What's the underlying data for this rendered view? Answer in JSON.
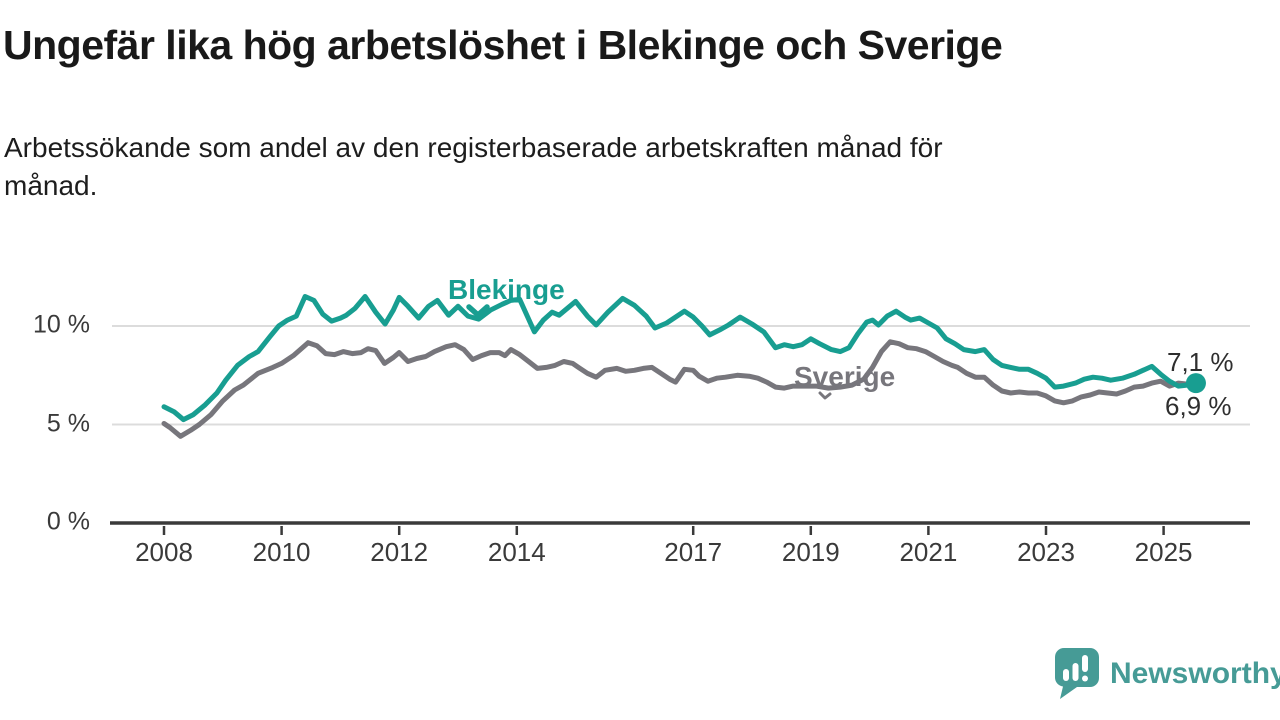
{
  "title": "Ungefär lika hög arbetslöshet i Blekinge och Sverige",
  "subtitle_lines": {
    "0": "Arbetssökande som andel av den registerbaserade arbetskraften månad för",
    "1": "månad."
  },
  "branding": {
    "logo_text": "Newsworthy",
    "logo_color": "#469B96",
    "logo_icon": "speech-bubble-bar-chart-icon"
  },
  "chart_data": {
    "type": "line",
    "title": "Ungefär lika hög arbetslöshet i Blekinge och Sverige",
    "subtitle": "Arbetssökande som andel av den registerbaserade arbetskraften månad för månad.",
    "xlabel": "",
    "ylabel": "",
    "unit": "%",
    "grid": "horizontal",
    "gridline_values": [
      5,
      10
    ],
    "gridline_color": "#dcdcdc",
    "axis_color": "#3a3a3a",
    "xlim": [
      2007.08,
      2026.45
    ],
    "ylim": [
      0,
      12.3
    ],
    "x_ticks": [
      {
        "value": 2008,
        "label": "2008"
      },
      {
        "value": 2010,
        "label": "2010"
      },
      {
        "value": 2012,
        "label": "2012"
      },
      {
        "value": 2014,
        "label": "2014"
      },
      {
        "value": 2017,
        "label": "2017"
      },
      {
        "value": 2019,
        "label": "2019"
      },
      {
        "value": 2021,
        "label": "2021"
      },
      {
        "value": 2023,
        "label": "2023"
      },
      {
        "value": 2025,
        "label": "2025"
      }
    ],
    "y_ticks": [
      {
        "value": 0,
        "label": "0 %"
      },
      {
        "value": 5,
        "label": "5 %"
      },
      {
        "value": 10,
        "label": "10 %"
      }
    ],
    "legend": "inline series labels with pointer arrows",
    "series": [
      {
        "name": "Blekinge",
        "color": "#189E91",
        "end_label": "7,1 %",
        "end_value": 7.1,
        "end_dot": true,
        "points": [
          [
            2008.0,
            5.9
          ],
          [
            2008.17,
            5.65
          ],
          [
            2008.33,
            5.25
          ],
          [
            2008.5,
            5.5
          ],
          [
            2008.7,
            6.0
          ],
          [
            2008.9,
            6.6
          ],
          [
            2009.05,
            7.25
          ],
          [
            2009.25,
            8.0
          ],
          [
            2009.45,
            8.45
          ],
          [
            2009.6,
            8.7
          ],
          [
            2009.8,
            9.45
          ],
          [
            2009.95,
            10.0
          ],
          [
            2010.1,
            10.3
          ],
          [
            2010.25,
            10.5
          ],
          [
            2010.4,
            11.5
          ],
          [
            2010.55,
            11.3
          ],
          [
            2010.7,
            10.6
          ],
          [
            2010.85,
            10.25
          ],
          [
            2011.0,
            10.4
          ],
          [
            2011.1,
            10.55
          ],
          [
            2011.25,
            10.9
          ],
          [
            2011.42,
            11.5
          ],
          [
            2011.6,
            10.7
          ],
          [
            2011.76,
            10.1
          ],
          [
            2011.9,
            10.8
          ],
          [
            2012.0,
            11.45
          ],
          [
            2012.15,
            11.0
          ],
          [
            2012.33,
            10.4
          ],
          [
            2012.5,
            11.0
          ],
          [
            2012.65,
            11.3
          ],
          [
            2012.84,
            10.55
          ],
          [
            2013.0,
            11.0
          ],
          [
            2013.17,
            10.5
          ],
          [
            2013.35,
            10.35
          ],
          [
            2013.55,
            10.8
          ],
          [
            2013.75,
            11.1
          ],
          [
            2013.9,
            11.3
          ],
          [
            2014.05,
            11.35
          ],
          [
            2014.3,
            9.7
          ],
          [
            2014.45,
            10.3
          ],
          [
            2014.6,
            10.7
          ],
          [
            2014.72,
            10.55
          ],
          [
            2015.0,
            11.25
          ],
          [
            2015.2,
            10.5
          ],
          [
            2015.35,
            10.05
          ],
          [
            2015.55,
            10.7
          ],
          [
            2015.8,
            11.4
          ],
          [
            2016.0,
            11.05
          ],
          [
            2016.2,
            10.5
          ],
          [
            2016.35,
            9.9
          ],
          [
            2016.55,
            10.15
          ],
          [
            2016.85,
            10.75
          ],
          [
            2017.0,
            10.45
          ],
          [
            2017.15,
            10.0
          ],
          [
            2017.28,
            9.55
          ],
          [
            2017.45,
            9.8
          ],
          [
            2017.6,
            10.05
          ],
          [
            2017.8,
            10.45
          ],
          [
            2018.0,
            10.1
          ],
          [
            2018.2,
            9.7
          ],
          [
            2018.4,
            8.9
          ],
          [
            2018.55,
            9.05
          ],
          [
            2018.7,
            8.95
          ],
          [
            2018.85,
            9.05
          ],
          [
            2019.0,
            9.35
          ],
          [
            2019.15,
            9.1
          ],
          [
            2019.35,
            8.8
          ],
          [
            2019.5,
            8.7
          ],
          [
            2019.65,
            8.9
          ],
          [
            2019.8,
            9.6
          ],
          [
            2019.95,
            10.2
          ],
          [
            2020.05,
            10.3
          ],
          [
            2020.15,
            10.05
          ],
          [
            2020.3,
            10.5
          ],
          [
            2020.45,
            10.75
          ],
          [
            2020.6,
            10.45
          ],
          [
            2020.7,
            10.3
          ],
          [
            2020.85,
            10.4
          ],
          [
            2021.0,
            10.15
          ],
          [
            2021.15,
            9.9
          ],
          [
            2021.3,
            9.35
          ],
          [
            2021.45,
            9.1
          ],
          [
            2021.6,
            8.8
          ],
          [
            2021.8,
            8.7
          ],
          [
            2021.95,
            8.8
          ],
          [
            2022.1,
            8.3
          ],
          [
            2022.25,
            8.0
          ],
          [
            2022.4,
            7.9
          ],
          [
            2022.55,
            7.8
          ],
          [
            2022.7,
            7.8
          ],
          [
            2022.85,
            7.6
          ],
          [
            2023.0,
            7.35
          ],
          [
            2023.15,
            6.9
          ],
          [
            2023.3,
            6.95
          ],
          [
            2023.5,
            7.1
          ],
          [
            2023.65,
            7.3
          ],
          [
            2023.8,
            7.4
          ],
          [
            2023.95,
            7.35
          ],
          [
            2024.1,
            7.25
          ],
          [
            2024.3,
            7.35
          ],
          [
            2024.5,
            7.55
          ],
          [
            2024.65,
            7.75
          ],
          [
            2024.8,
            7.95
          ],
          [
            2024.95,
            7.55
          ],
          [
            2025.1,
            7.2
          ],
          [
            2025.25,
            6.95
          ],
          [
            2025.4,
            7.0
          ],
          [
            2025.55,
            7.1
          ]
        ]
      },
      {
        "name": "Sverige",
        "color": "#77767C",
        "end_label": "6,9 %",
        "end_value": 6.9,
        "end_dot": false,
        "points": [
          [
            2008.0,
            5.05
          ],
          [
            2008.1,
            4.85
          ],
          [
            2008.28,
            4.4
          ],
          [
            2008.45,
            4.7
          ],
          [
            2008.6,
            5.0
          ],
          [
            2008.8,
            5.5
          ],
          [
            2009.0,
            6.2
          ],
          [
            2009.2,
            6.75
          ],
          [
            2009.35,
            7.0
          ],
          [
            2009.6,
            7.6
          ],
          [
            2009.85,
            7.9
          ],
          [
            2010.0,
            8.1
          ],
          [
            2010.2,
            8.5
          ],
          [
            2010.45,
            9.15
          ],
          [
            2010.6,
            9.0
          ],
          [
            2010.75,
            8.6
          ],
          [
            2010.9,
            8.55
          ],
          [
            2011.05,
            8.7
          ],
          [
            2011.2,
            8.6
          ],
          [
            2011.35,
            8.65
          ],
          [
            2011.47,
            8.85
          ],
          [
            2011.6,
            8.75
          ],
          [
            2011.75,
            8.1
          ],
          [
            2011.9,
            8.4
          ],
          [
            2012.0,
            8.65
          ],
          [
            2012.15,
            8.2
          ],
          [
            2012.3,
            8.35
          ],
          [
            2012.45,
            8.45
          ],
          [
            2012.6,
            8.7
          ],
          [
            2012.8,
            8.95
          ],
          [
            2012.95,
            9.05
          ],
          [
            2013.1,
            8.8
          ],
          [
            2013.25,
            8.3
          ],
          [
            2013.4,
            8.5
          ],
          [
            2013.55,
            8.65
          ],
          [
            2013.7,
            8.65
          ],
          [
            2013.8,
            8.5
          ],
          [
            2013.9,
            8.8
          ],
          [
            2014.05,
            8.55
          ],
          [
            2014.2,
            8.2
          ],
          [
            2014.35,
            7.85
          ],
          [
            2014.5,
            7.9
          ],
          [
            2014.65,
            8.0
          ],
          [
            2014.8,
            8.2
          ],
          [
            2014.95,
            8.1
          ],
          [
            2015.05,
            7.9
          ],
          [
            2015.2,
            7.6
          ],
          [
            2015.35,
            7.4
          ],
          [
            2015.5,
            7.75
          ],
          [
            2015.7,
            7.85
          ],
          [
            2015.85,
            7.7
          ],
          [
            2016.0,
            7.75
          ],
          [
            2016.15,
            7.85
          ],
          [
            2016.3,
            7.9
          ],
          [
            2016.45,
            7.6
          ],
          [
            2016.6,
            7.3
          ],
          [
            2016.7,
            7.15
          ],
          [
            2016.85,
            7.8
          ],
          [
            2017.0,
            7.75
          ],
          [
            2017.1,
            7.45
          ],
          [
            2017.25,
            7.2
          ],
          [
            2017.4,
            7.35
          ],
          [
            2017.55,
            7.4
          ],
          [
            2017.75,
            7.5
          ],
          [
            2017.95,
            7.45
          ],
          [
            2018.1,
            7.35
          ],
          [
            2018.25,
            7.15
          ],
          [
            2018.4,
            6.9
          ],
          [
            2018.55,
            6.85
          ],
          [
            2018.7,
            6.95
          ],
          [
            2018.9,
            6.95
          ],
          [
            2019.1,
            6.95
          ],
          [
            2019.3,
            6.85
          ],
          [
            2019.5,
            6.9
          ],
          [
            2019.7,
            7.0
          ],
          [
            2019.9,
            7.3
          ],
          [
            2020.05,
            7.9
          ],
          [
            2020.2,
            8.7
          ],
          [
            2020.35,
            9.2
          ],
          [
            2020.5,
            9.1
          ],
          [
            2020.65,
            8.9
          ],
          [
            2020.8,
            8.85
          ],
          [
            2020.95,
            8.7
          ],
          [
            2021.1,
            8.45
          ],
          [
            2021.25,
            8.2
          ],
          [
            2021.4,
            8.0
          ],
          [
            2021.5,
            7.9
          ],
          [
            2021.65,
            7.6
          ],
          [
            2021.8,
            7.4
          ],
          [
            2021.95,
            7.4
          ],
          [
            2022.1,
            7.0
          ],
          [
            2022.25,
            6.7
          ],
          [
            2022.4,
            6.6
          ],
          [
            2022.55,
            6.65
          ],
          [
            2022.7,
            6.6
          ],
          [
            2022.85,
            6.6
          ],
          [
            2023.0,
            6.45
          ],
          [
            2023.15,
            6.2
          ],
          [
            2023.3,
            6.1
          ],
          [
            2023.45,
            6.2
          ],
          [
            2023.6,
            6.4
          ],
          [
            2023.75,
            6.5
          ],
          [
            2023.9,
            6.65
          ],
          [
            2024.05,
            6.6
          ],
          [
            2024.2,
            6.55
          ],
          [
            2024.35,
            6.7
          ],
          [
            2024.5,
            6.9
          ],
          [
            2024.65,
            6.95
          ],
          [
            2024.8,
            7.1
          ],
          [
            2024.95,
            7.2
          ],
          [
            2025.1,
            6.95
          ],
          [
            2025.25,
            7.1
          ],
          [
            2025.4,
            7.05
          ],
          [
            2025.55,
            6.9
          ]
        ]
      }
    ],
    "annotations": [
      {
        "text": "Blekinge",
        "role": "series-label",
        "series": "Blekinge"
      },
      {
        "text": "Sverige",
        "role": "series-label",
        "series": "Sverige"
      },
      {
        "text": "7,1 %",
        "role": "end-value-label",
        "series": "Blekinge"
      },
      {
        "text": "6,9 %",
        "role": "end-value-label",
        "series": "Sverige"
      }
    ]
  }
}
